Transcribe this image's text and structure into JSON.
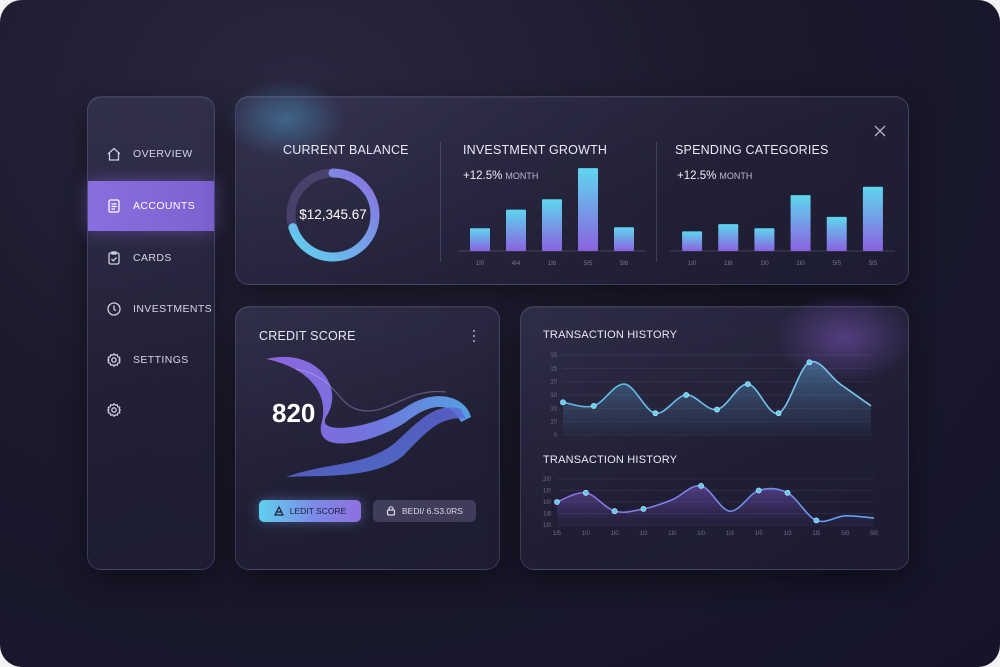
{
  "sidebar": {
    "items": [
      {
        "label": "OVERVIEW",
        "icon": "home-icon",
        "active": false
      },
      {
        "label": "ACCOUNTS",
        "icon": "document-icon",
        "active": true
      },
      {
        "label": "CARDS",
        "icon": "clipboard-icon",
        "active": false
      },
      {
        "label": "INVESTMENTS",
        "icon": "clock-icon",
        "active": false
      },
      {
        "label": "SETTINGS",
        "icon": "gear-icon",
        "active": false
      },
      {
        "label": "",
        "icon": "gear-icon",
        "active": false
      }
    ]
  },
  "balance": {
    "title": "CURRENT BALANCE",
    "value": "$12,345.67"
  },
  "investment": {
    "title": "INVESTMENT GROWTH",
    "change": "+12.5%",
    "period": "MONTH"
  },
  "spending": {
    "title": "SPENDING CATEGORIES",
    "change": "+12.5%",
    "period": "MONTH"
  },
  "credit": {
    "title": "CREDIT SCORE",
    "value": "820",
    "primary_button": "LEDIT SCORE",
    "secondary_button": "BEDI/ 6.S3.0RS"
  },
  "transactions": {
    "title_top": "TRANSACTION HISTORY",
    "title_bottom": "TRANSACTION HISTORY"
  },
  "colors": {
    "accent_purple": "#8a6ee0",
    "accent_cyan": "#5fd0ee",
    "background": "#1b1a2c"
  },
  "chart_data": [
    {
      "type": "pie",
      "title": "CURRENT BALANCE",
      "center_label": "$12,345.67",
      "values": [
        70,
        30
      ]
    },
    {
      "type": "bar",
      "title": "INVESTMENT GROWTH",
      "categories": [
        "1l0",
        "4l4",
        "1l6",
        "5l5",
        "5l6"
      ],
      "values": [
        22,
        40,
        50,
        80,
        23
      ],
      "ylim": [
        0,
        85
      ]
    },
    {
      "type": "bar",
      "title": "SPENDING CATEGORIES",
      "categories": [
        "1l0",
        "1l8",
        "1l0",
        "1l0",
        "5l5",
        "5l5"
      ],
      "values": [
        19,
        26,
        22,
        54,
        33,
        62
      ],
      "ylim": [
        0,
        85
      ]
    },
    {
      "type": "area",
      "title": "TRANSACTION HISTORY",
      "y_ticks": [
        "0",
        "10",
        "10",
        "10",
        "10",
        "15",
        "15"
      ],
      "x": [
        1,
        2,
        3,
        4,
        5,
        6,
        7,
        8,
        9,
        10,
        11
      ],
      "values": [
        9,
        8,
        14,
        6,
        11,
        7,
        14,
        6,
        20,
        14,
        8
      ],
      "ylim": [
        0,
        22
      ]
    },
    {
      "type": "area",
      "title": "TRANSACTION HISTORY",
      "categories": [
        "1l5",
        "1l0",
        "1l0",
        "1l3",
        "1l0",
        "1l0",
        "1l3",
        "1l5",
        "1l3",
        "1l5",
        "5l0",
        "5l0"
      ],
      "y_ticks": [
        "1l0",
        "1l8",
        "1l0",
        "1l0",
        "2l0"
      ],
      "values": [
        10,
        14,
        6,
        7,
        11,
        17,
        6,
        15,
        14,
        2,
        4,
        3
      ],
      "ylim": [
        0,
        20
      ]
    }
  ]
}
